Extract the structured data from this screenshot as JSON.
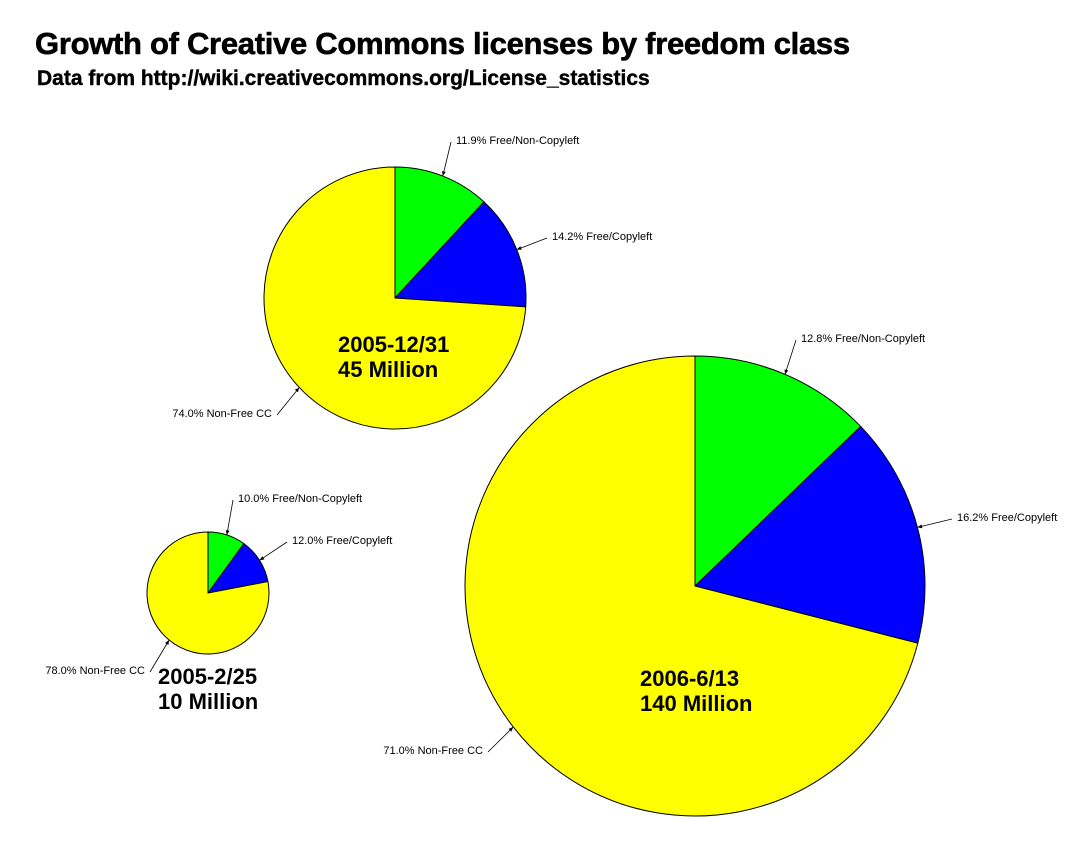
{
  "title": "Growth of Creative Commons licenses by freedom class",
  "subtitle": "Data from http://wiki.creativecommons.org/License_statistics",
  "colors": {
    "Free/Non-Copyleft": "#00ff00",
    "Free/Copyleft": "#0000ff",
    "Non-Free CC": "#ffff00"
  },
  "chart_data": [
    {
      "type": "pie",
      "date": "2005-2/25",
      "total": "10 Million",
      "slices": [
        {
          "label": "Free/Non-Copyleft",
          "value": 10.0,
          "text": "10.0% Free/Non-Copyleft"
        },
        {
          "label": "Free/Copyleft",
          "value": 12.0,
          "text": "12.0% Free/Copyleft"
        },
        {
          "label": "Non-Free CC",
          "value": 78.0,
          "text": "78.0% Non-Free CC"
        }
      ]
    },
    {
      "type": "pie",
      "date": "2005-12/31",
      "total": "45 Million",
      "slices": [
        {
          "label": "Free/Non-Copyleft",
          "value": 11.9,
          "text": "11.9% Free/Non-Copyleft"
        },
        {
          "label": "Free/Copyleft",
          "value": 14.2,
          "text": "14.2% Free/Copyleft"
        },
        {
          "label": "Non-Free CC",
          "value": 74.0,
          "text": "74.0% Non-Free CC"
        }
      ]
    },
    {
      "type": "pie",
      "date": "2006-6/13",
      "total": "140 Million",
      "slices": [
        {
          "label": "Free/Non-Copyleft",
          "value": 12.8,
          "text": "12.8% Free/Non-Copyleft"
        },
        {
          "label": "Free/Copyleft",
          "value": 16.2,
          "text": "16.2% Free/Copyleft"
        },
        {
          "label": "Non-Free CC",
          "value": 71.0,
          "text": "71.0% Non-Free CC"
        }
      ]
    }
  ]
}
